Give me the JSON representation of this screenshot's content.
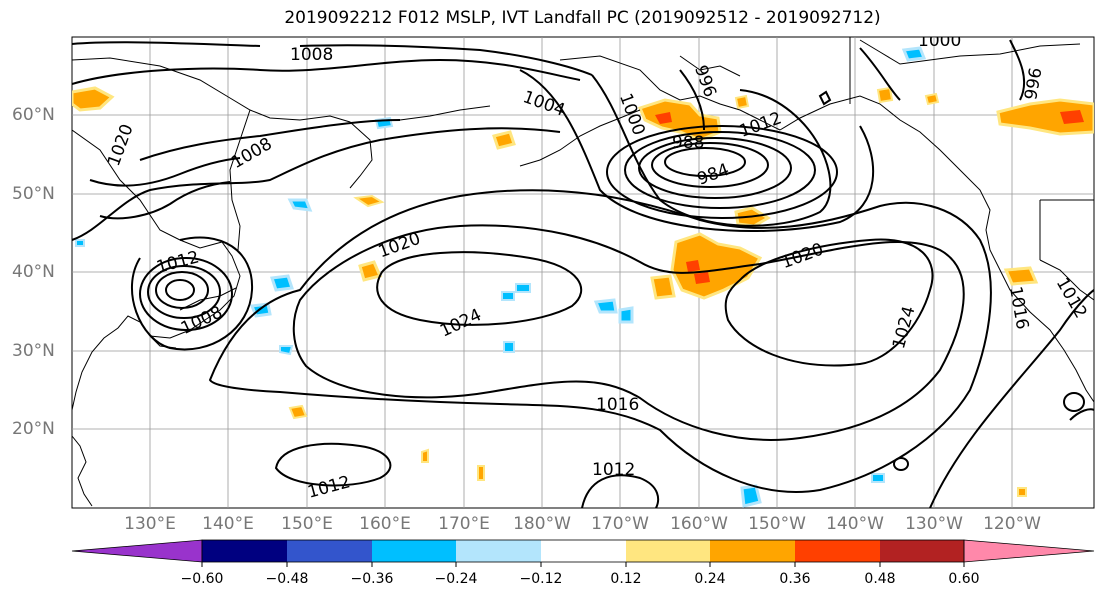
{
  "title": "2019092212 F012 MSLP, IVT Landfall PC (2019092512 - 2019092712)",
  "lat_labels": [
    "60°N",
    "50°N",
    "40°N",
    "30°N",
    "20°N"
  ],
  "lon_labels": [
    "130°E",
    "140°E",
    "150°E",
    "160°E",
    "170°E",
    "180°W",
    "170°W",
    "160°W",
    "150°W",
    "140°W",
    "130°W",
    "120°W"
  ],
  "contour_labels": [
    "1008",
    "1004",
    "1000",
    "996",
    "988",
    "984",
    "1008",
    "1020",
    "1020",
    "1020",
    "1024",
    "1024",
    "1012",
    "1008",
    "1016",
    "1012",
    "1012",
    "1000",
    "996",
    "1012",
    "1016",
    "1012"
  ],
  "colorbar": {
    "ticks": [
      "−0.60",
      "−0.48",
      "−0.36",
      "−0.24",
      "−0.12",
      "0.12",
      "0.24",
      "0.36",
      "0.48",
      "0.60"
    ],
    "colors": [
      "#9933cc",
      "#000080",
      "#3355cc",
      "#00bfff",
      "#b3e5fc",
      "#ffffff",
      "#ffe680",
      "#ffa500",
      "#ff4000",
      "#b22222",
      "#ff88aa"
    ]
  }
}
